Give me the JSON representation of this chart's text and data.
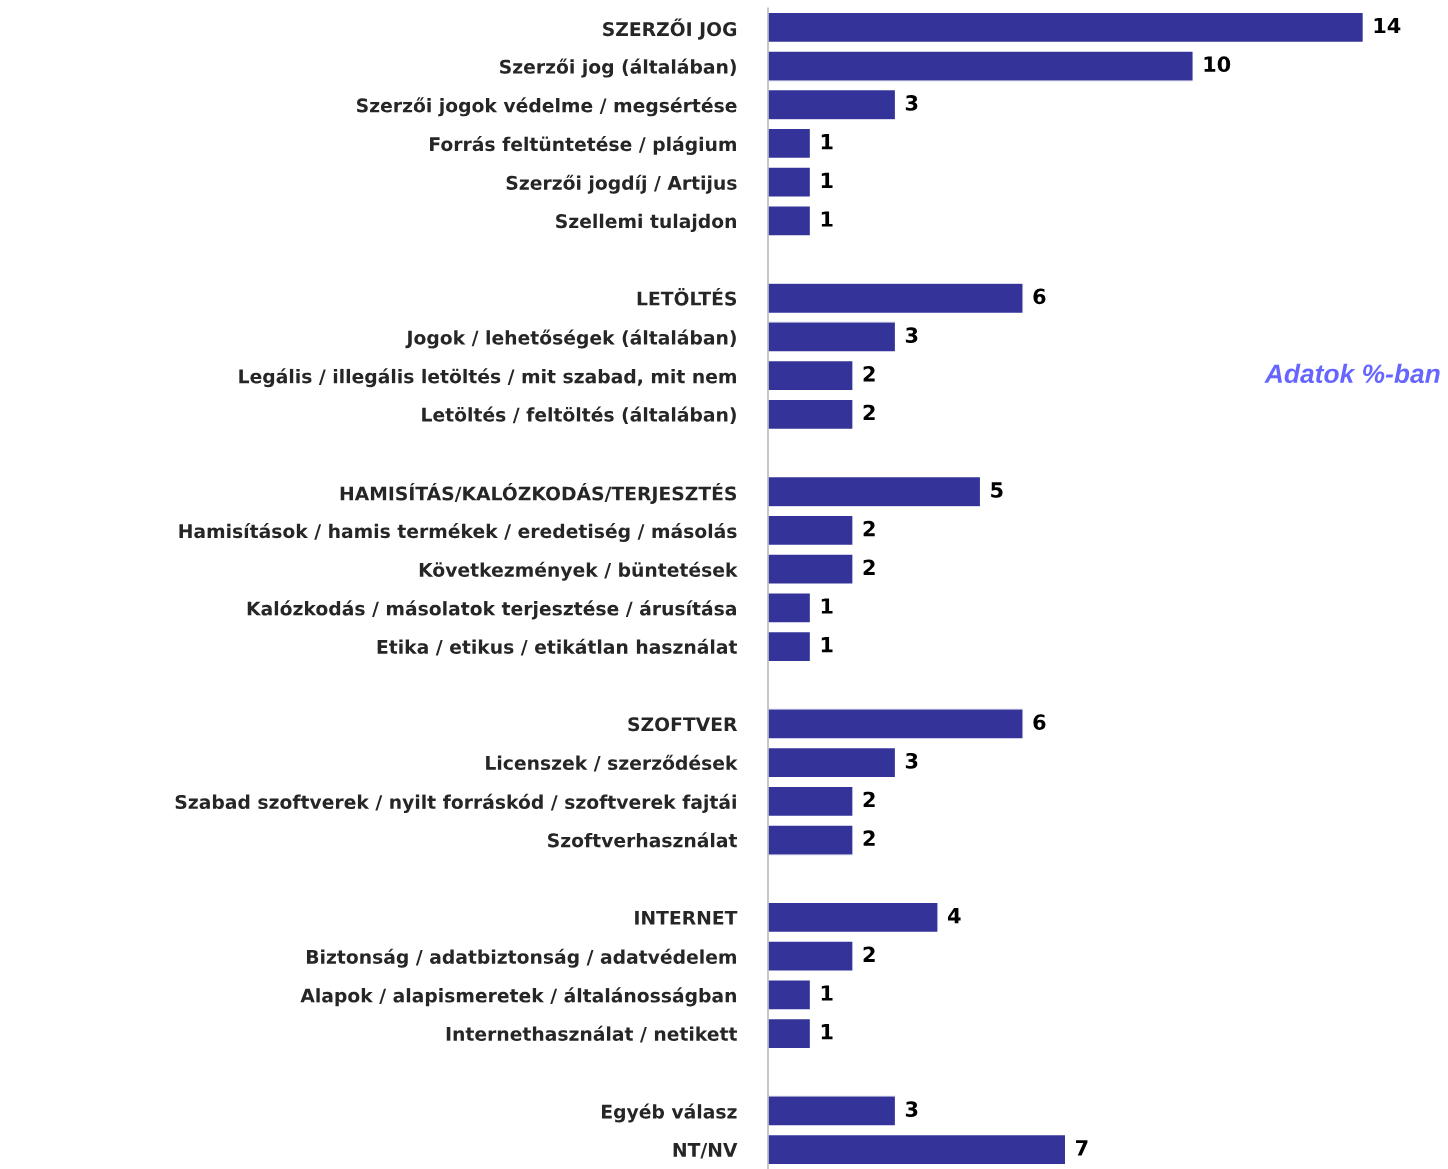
{
  "chart_data": {
    "type": "bar",
    "orientation": "horizontal",
    "data_labels": true,
    "grid": false,
    "legend": false,
    "tick_labels": "y",
    "categories": [
      "SZERZŐI JOG",
      "Szerzői jog (általában)",
      "Szerzői jogok védelme / megsértése",
      "Forrás feltüntetése / plágium",
      "Szerzői jogdíj / Artijus",
      "Szellemi tulajdon",
      null,
      "LETÖLTÉS",
      "Jogok / lehetőségek (általában)",
      "Legális / illegális letöltés / mit szabad, mit nem",
      "Letöltés / feltöltés (általában)",
      null,
      "HAMISÍTÁS/KALÓZKODÁS/TERJESZTÉS",
      "Hamisítások / hamis termékek / eredetiség / másolás",
      "Következmények / büntetések",
      "Kalózkodás / másolatok terjesztése / árusítása",
      "Etika / etikus / etikátlan használat",
      null,
      "SZOFTVER",
      "Licenszek / szerződések",
      "Szabad szoftverek / nyilt forráskód / szoftverek fajtái",
      "Szoftverhasználat",
      null,
      "INTERNET",
      "Biztonság / adatbiztonság / adatvédelem",
      "Alapok / alapismeretek / általánosságban",
      "Internethasználat / netikett",
      null,
      "Egyéb válasz",
      "NT/NV"
    ],
    "series": [
      {
        "color": "#333399",
        "values": [
          14,
          10,
          3,
          1,
          1,
          1,
          null,
          6,
          3,
          2,
          2,
          null,
          5,
          2,
          2,
          1,
          1,
          null,
          6,
          3,
          2,
          2,
          null,
          4,
          2,
          1,
          1,
          null,
          3,
          7
        ]
      }
    ],
    "annotations": [
      "Adatok %-ban"
    ]
  }
}
